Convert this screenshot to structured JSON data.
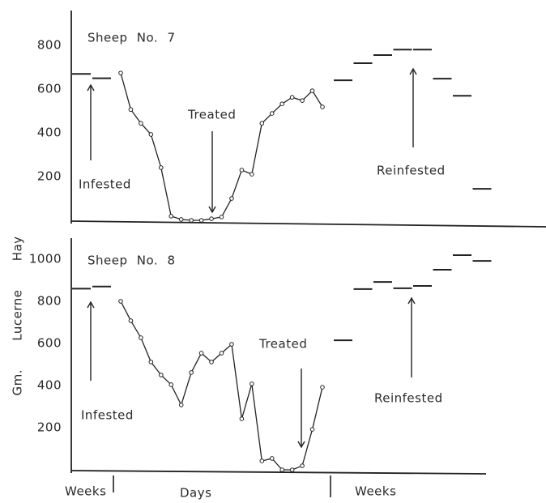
{
  "chart_data": [
    {
      "type": "line",
      "title": "Sheep No. 7",
      "ylim": [
        0,
        960
      ],
      "yticks": [
        200,
        400,
        600,
        800
      ],
      "before": [
        670,
        650
      ],
      "days": [
        674,
        507,
        444,
        393,
        241,
        19,
        4,
        0,
        0,
        7,
        15,
        100,
        230,
        211,
        444,
        489,
        533,
        563,
        548,
        593,
        519
      ],
      "after": [
        641,
        719,
        756,
        781,
        781,
        648,
        570,
        144
      ],
      "annotations": [
        "Infested",
        "Treated",
        "Reinfested"
      ]
    },
    {
      "type": "line",
      "title": "Sheep No. 8",
      "ylim": [
        0,
        1100
      ],
      "yticks": [
        200,
        400,
        600,
        800,
        1000
      ],
      "before": [
        860,
        870
      ],
      "days": [
        800,
        708,
        627,
        512,
        450,
        404,
        308,
        462,
        554,
        512,
        554,
        596,
        242,
        408,
        42,
        54,
        0,
        0,
        19,
        192,
        392
      ],
      "after": [
        615,
        858,
        892,
        862,
        873,
        950,
        1019,
        992
      ],
      "annotations": [
        "Infested",
        "Treated",
        "Reinfested"
      ]
    }
  ],
  "y_label": "Gm.  Lucerne  Hay",
  "x_labels": [
    "Weeks",
    "Days",
    "Weeks"
  ]
}
